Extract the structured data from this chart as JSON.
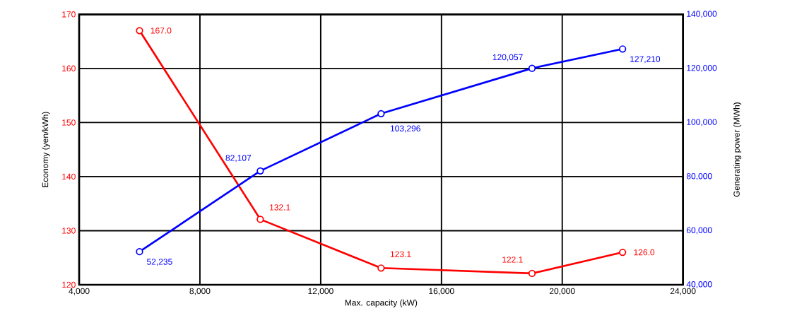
{
  "chart_data": {
    "type": "line",
    "xlabel": "Max. capacity (kW)",
    "ylabel": "Economy (yen/kWh)",
    "y2label": "Generating power (MWh)",
    "x": [
      6000,
      10000,
      14000,
      19000,
      22000
    ],
    "series": [
      {
        "color": "#ff0000",
        "values": [
          167.0,
          132.1,
          123.1,
          122.1,
          126.0
        ],
        "value_labels": [
          "167.0",
          "132.1",
          "123.1",
          "122.1",
          "126.0"
        ]
      },
      {
        "color": "#0000ff",
        "axis": "y2",
        "values": [
          52235,
          82107,
          103296,
          120057,
          127210
        ],
        "value_labels": [
          "52,235",
          "82,107",
          "103,296",
          "120,057",
          "127,210"
        ]
      }
    ],
    "xlim": [
      4000,
      24000
    ],
    "xticks": [
      {
        "value": 4000,
        "label": "4,000"
      },
      {
        "value": 8000,
        "label": "8,000"
      },
      {
        "value": 12000,
        "label": "12,000"
      },
      {
        "value": 16000,
        "label": "16,000"
      },
      {
        "value": 20000,
        "label": "20,000"
      },
      {
        "value": 24000,
        "label": "24,000"
      }
    ],
    "ylim": [
      120,
      170
    ],
    "yticks": [
      120,
      130,
      140,
      150,
      160,
      170
    ],
    "y2lim": [
      40000,
      140000
    ],
    "y2ticks": [
      {
        "value": 40000,
        "label": "40,000"
      },
      {
        "value": 60000,
        "label": "60,000"
      },
      {
        "value": 80000,
        "label": "80,000"
      },
      {
        "value": 100000,
        "label": "100,000"
      },
      {
        "value": 120000,
        "label": "120,000"
      },
      {
        "value": 140000,
        "label": "140,000"
      }
    ],
    "grid": true,
    "marker": "circle",
    "line_style": "solid"
  }
}
